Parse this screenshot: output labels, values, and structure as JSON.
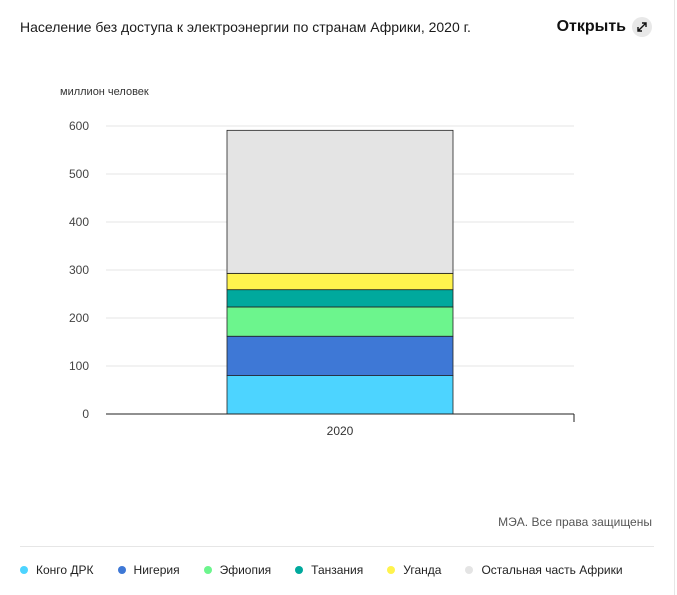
{
  "header": {
    "title": "Население без доступа к электроэнергии по странам Африки, 2020 г.",
    "open_label": "Открыть",
    "open_icon": "expand-arrows-icon"
  },
  "source": "МЭА. Все права защищены",
  "chart_data": {
    "type": "bar",
    "stacked": true,
    "ylabel": "миллион человек",
    "categories": [
      "2020"
    ],
    "ylim": [
      0,
      600
    ],
    "yticks": [
      0,
      100,
      200,
      300,
      400,
      500,
      600
    ],
    "grid": true,
    "legend_position": "bottom",
    "series": [
      {
        "name": "Конго ДРК",
        "color": "#4dd4ff",
        "values": [
          80
        ]
      },
      {
        "name": "Нигерия",
        "color": "#3e78d6",
        "values": [
          82
        ]
      },
      {
        "name": "Эфиопия",
        "color": "#6cf58d",
        "values": [
          61
        ]
      },
      {
        "name": "Танзания",
        "color": "#00a99d",
        "values": [
          36
        ]
      },
      {
        "name": "Уганда",
        "color": "#fff34d",
        "values": [
          34
        ]
      },
      {
        "name": "Остальная часть Африки",
        "color": "#e4e4e4",
        "values": [
          298
        ]
      }
    ]
  }
}
